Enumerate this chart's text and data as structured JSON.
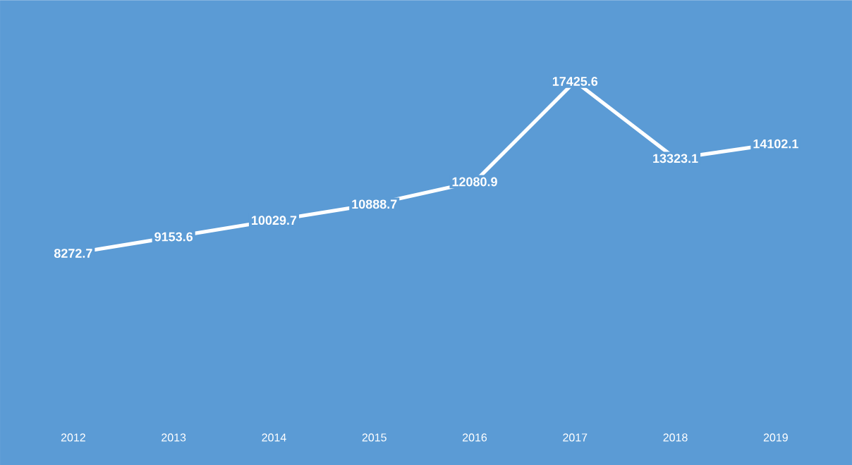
{
  "chart_data": {
    "type": "line",
    "categories": [
      "2012",
      "2013",
      "2014",
      "2015",
      "2016",
      "2017",
      "2018",
      "2019"
    ],
    "series": [
      {
        "color": "#ffffff",
        "values": [
          8272.7,
          9153.6,
          10029.7,
          10888.7,
          12080.9,
          17425.6,
          13323.1,
          14102.1
        ]
      }
    ],
    "data_labels": true
  }
}
